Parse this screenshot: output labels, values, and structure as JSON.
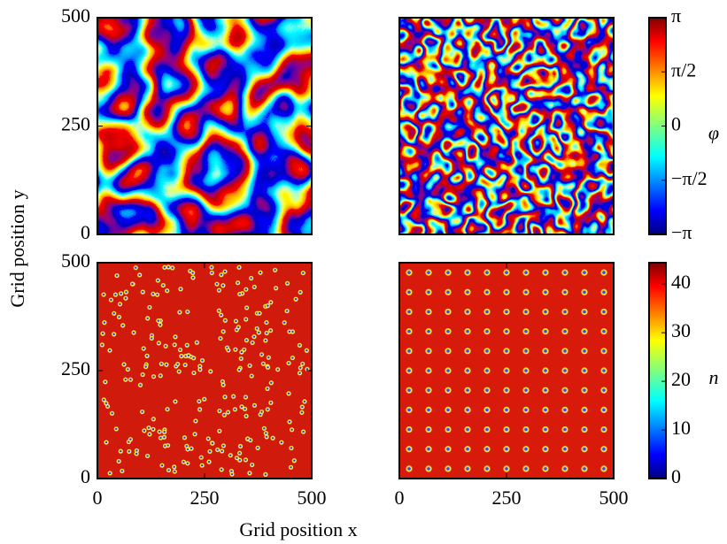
{
  "x_label": "Grid position x",
  "y_label": "Grid position y",
  "chart_data": [
    {
      "type": "heatmap",
      "ylim": [
        0,
        500
      ],
      "yticks": [
        0,
        250,
        500
      ]
    },
    {
      "type": "heatmap",
      "colorbar": {
        "label": "φ",
        "lim": [
          -3.14159,
          3.14159
        ],
        "ticks": [
          {
            "value": -3.14159,
            "label": "−π"
          },
          {
            "value": -1.5708,
            "label": "−π/2"
          },
          {
            "value": 0,
            "label": "0"
          },
          {
            "value": 1.5708,
            "label": "π/2"
          },
          {
            "value": 3.14159,
            "label": "π"
          }
        ]
      }
    },
    {
      "type": "heatmap",
      "xlim": [
        0,
        500
      ],
      "xticks": [
        0,
        250,
        500
      ],
      "ylim": [
        0,
        500
      ],
      "yticks": [
        0,
        250,
        500
      ]
    },
    {
      "type": "heatmap",
      "xlim": [
        0,
        500
      ],
      "xticks": [
        0,
        250,
        500
      ],
      "colorbar": {
        "label": "n",
        "lim": [
          0,
          44.4
        ],
        "ticks": [
          0,
          10,
          20,
          30,
          40
        ]
      }
    }
  ]
}
